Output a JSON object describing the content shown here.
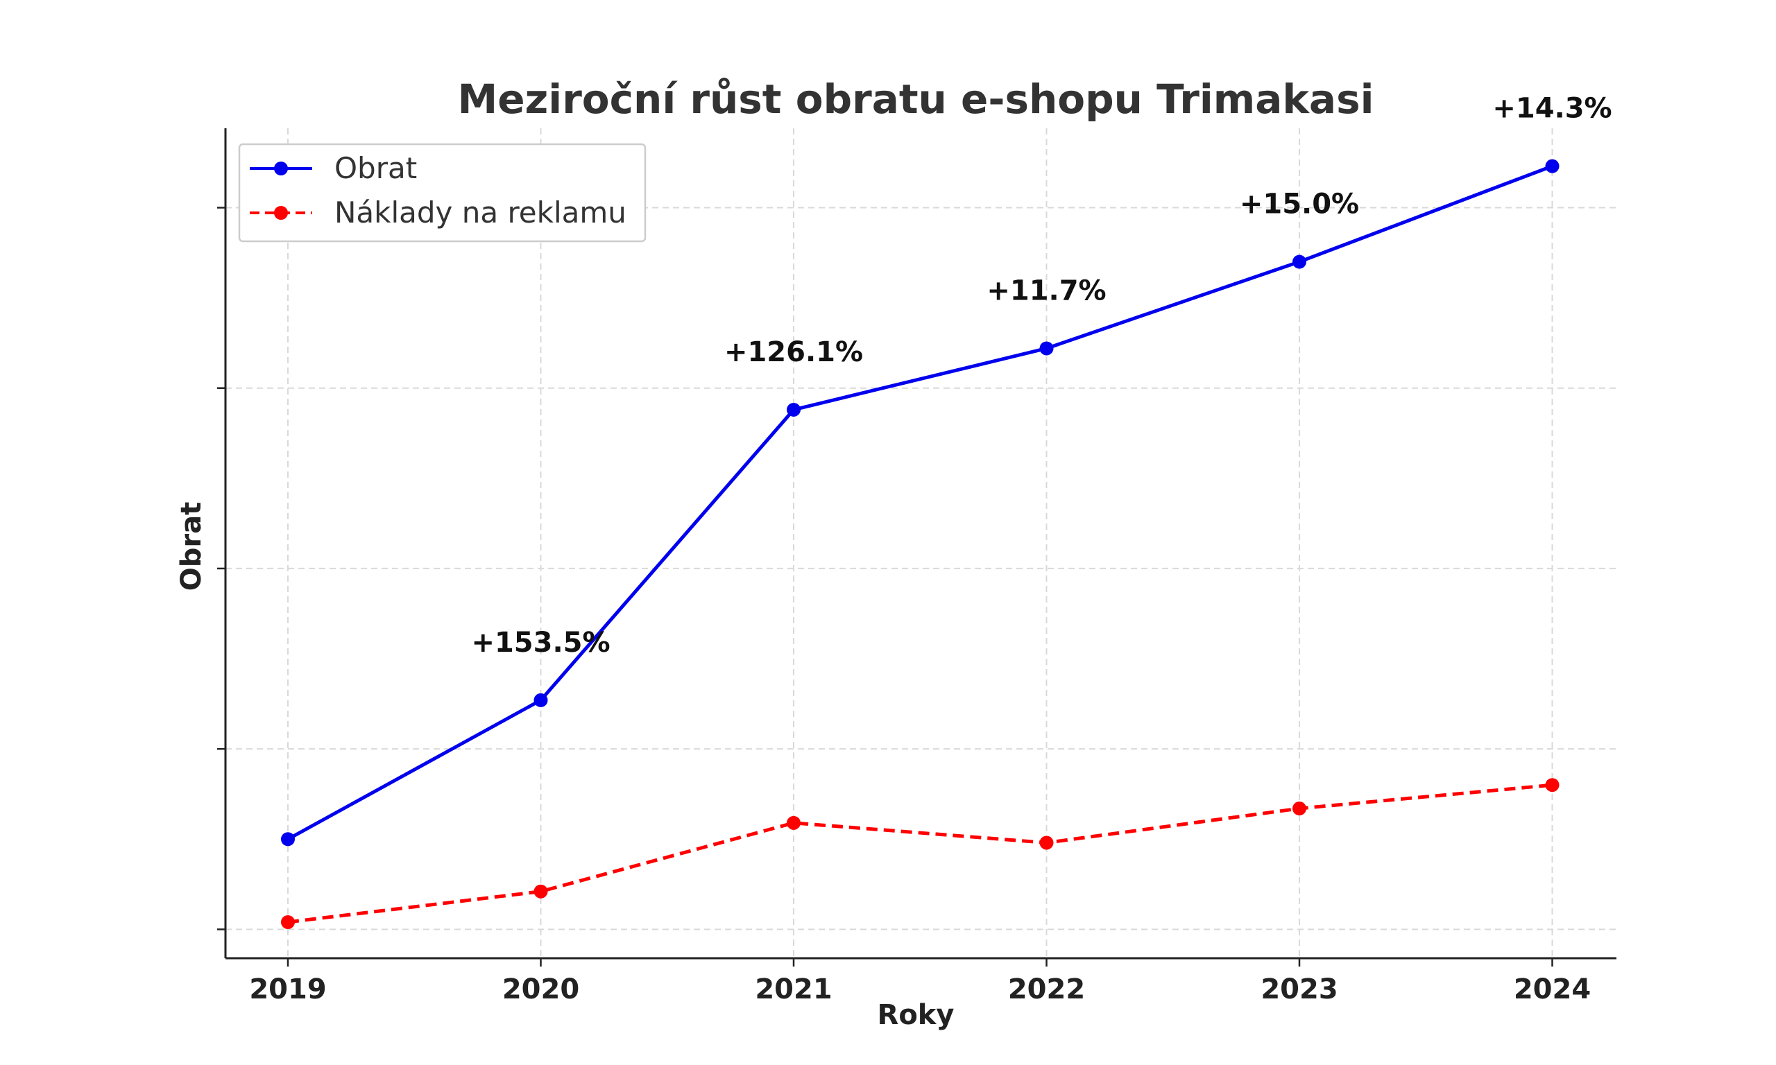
{
  "chart_data": {
    "type": "line",
    "title": "Meziroční růst obratu e-shopu Trimakasi",
    "xlabel": "Roky",
    "ylabel": "Obrat",
    "categories": [
      "2019",
      "2020",
      "2021",
      "2022",
      "2023",
      "2024"
    ],
    "ylim": [
      -0.16,
      4.44
    ],
    "y_ticks": [
      0,
      1,
      2,
      3,
      4
    ],
    "grid": true,
    "legend_position": "top-left",
    "series": [
      {
        "name": "Obrat",
        "color": "#0000ee",
        "dash": "solid",
        "marker": "circle",
        "values": [
          0.5,
          1.27,
          2.88,
          3.22,
          3.7,
          4.23
        ],
        "labels": [
          "",
          "+153.5%",
          "+126.1%",
          "+11.7%",
          "+15.0%",
          "+14.3%"
        ]
      },
      {
        "name": "Náklady na reklamu",
        "color": "#ff0000",
        "dash": "dashed",
        "marker": "circle",
        "values": [
          0.04,
          0.21,
          0.59,
          0.48,
          0.67,
          0.8
        ]
      }
    ]
  }
}
